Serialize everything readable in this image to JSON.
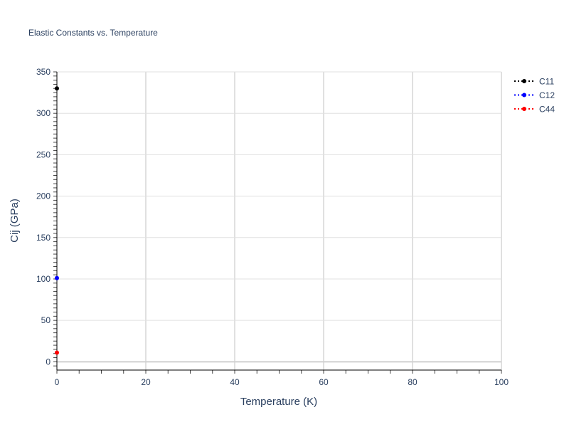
{
  "chart_data": {
    "type": "scatter",
    "title": "Elastic Constants vs. Temperature",
    "xlabel": "Temperature (K)",
    "ylabel": "Cij (GPa)",
    "xlim": [
      0,
      100
    ],
    "ylim": [
      -10,
      350
    ],
    "xticks": [
      0,
      20,
      40,
      60,
      80,
      100
    ],
    "yticks": [
      0,
      50,
      100,
      150,
      200,
      250,
      300,
      350
    ],
    "grid": true,
    "legend_position": "top-right",
    "series": [
      {
        "name": "C11",
        "color": "#000000",
        "line": "dotted",
        "x": [
          0
        ],
        "y": [
          330
        ]
      },
      {
        "name": "C12",
        "color": "#0000ff",
        "line": "dotted",
        "x": [
          0
        ],
        "y": [
          101
        ]
      },
      {
        "name": "C44",
        "color": "#ff0000",
        "line": "dotted",
        "x": [
          0
        ],
        "y": [
          11
        ]
      }
    ]
  }
}
